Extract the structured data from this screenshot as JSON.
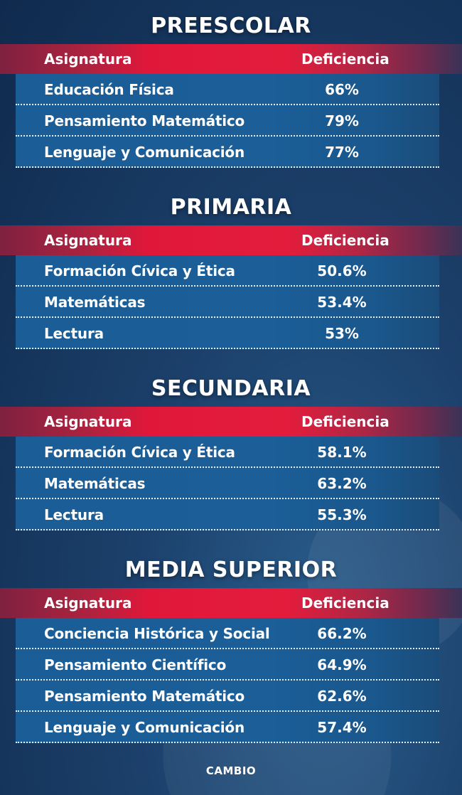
{
  "sections": [
    {
      "title": "PREESCOLAR",
      "col_subject": "Asignatura",
      "col_value": "Deficiencia",
      "rows": [
        {
          "subject": "Educación Física",
          "value": "66%"
        },
        {
          "subject": "Pensamiento Matemático",
          "value": "79%"
        },
        {
          "subject": "Lenguaje y Comunicación",
          "value": "77%"
        }
      ]
    },
    {
      "title": "PRIMARIA",
      "col_subject": "Asignatura",
      "col_value": "Deficiencia",
      "rows": [
        {
          "subject": "Formación Cívica y Ética",
          "value": "50.6%"
        },
        {
          "subject": "Matemáticas",
          "value": "53.4%"
        },
        {
          "subject": "Lectura",
          "value": "53%"
        }
      ]
    },
    {
      "title": "SECUNDARIA",
      "col_subject": "Asignatura",
      "col_value": "Deficiencia",
      "rows": [
        {
          "subject": "Formación Cívica y Ética",
          "value": "58.1%"
        },
        {
          "subject": "Matemáticas",
          "value": "63.2%"
        },
        {
          "subject": "Lectura",
          "value": "55.3%"
        }
      ]
    },
    {
      "title": "MEDIA SUPERIOR",
      "col_subject": "Asignatura",
      "col_value": "Deficiencia",
      "rows": [
        {
          "subject": "Conciencia Histórica y Social",
          "value": "66.2%"
        },
        {
          "subject": "Pensamiento Científico",
          "value": "64.9%"
        },
        {
          "subject": "Pensamiento Matemático",
          "value": "62.6%"
        },
        {
          "subject": "Lenguaje y Comunicación",
          "value": "57.4%"
        }
      ]
    }
  ],
  "footer": {
    "brand": "CAMBIO"
  },
  "colors": {
    "background": "#1c416c",
    "header_accent": "#e41c3c",
    "row": "#1b5e98"
  }
}
